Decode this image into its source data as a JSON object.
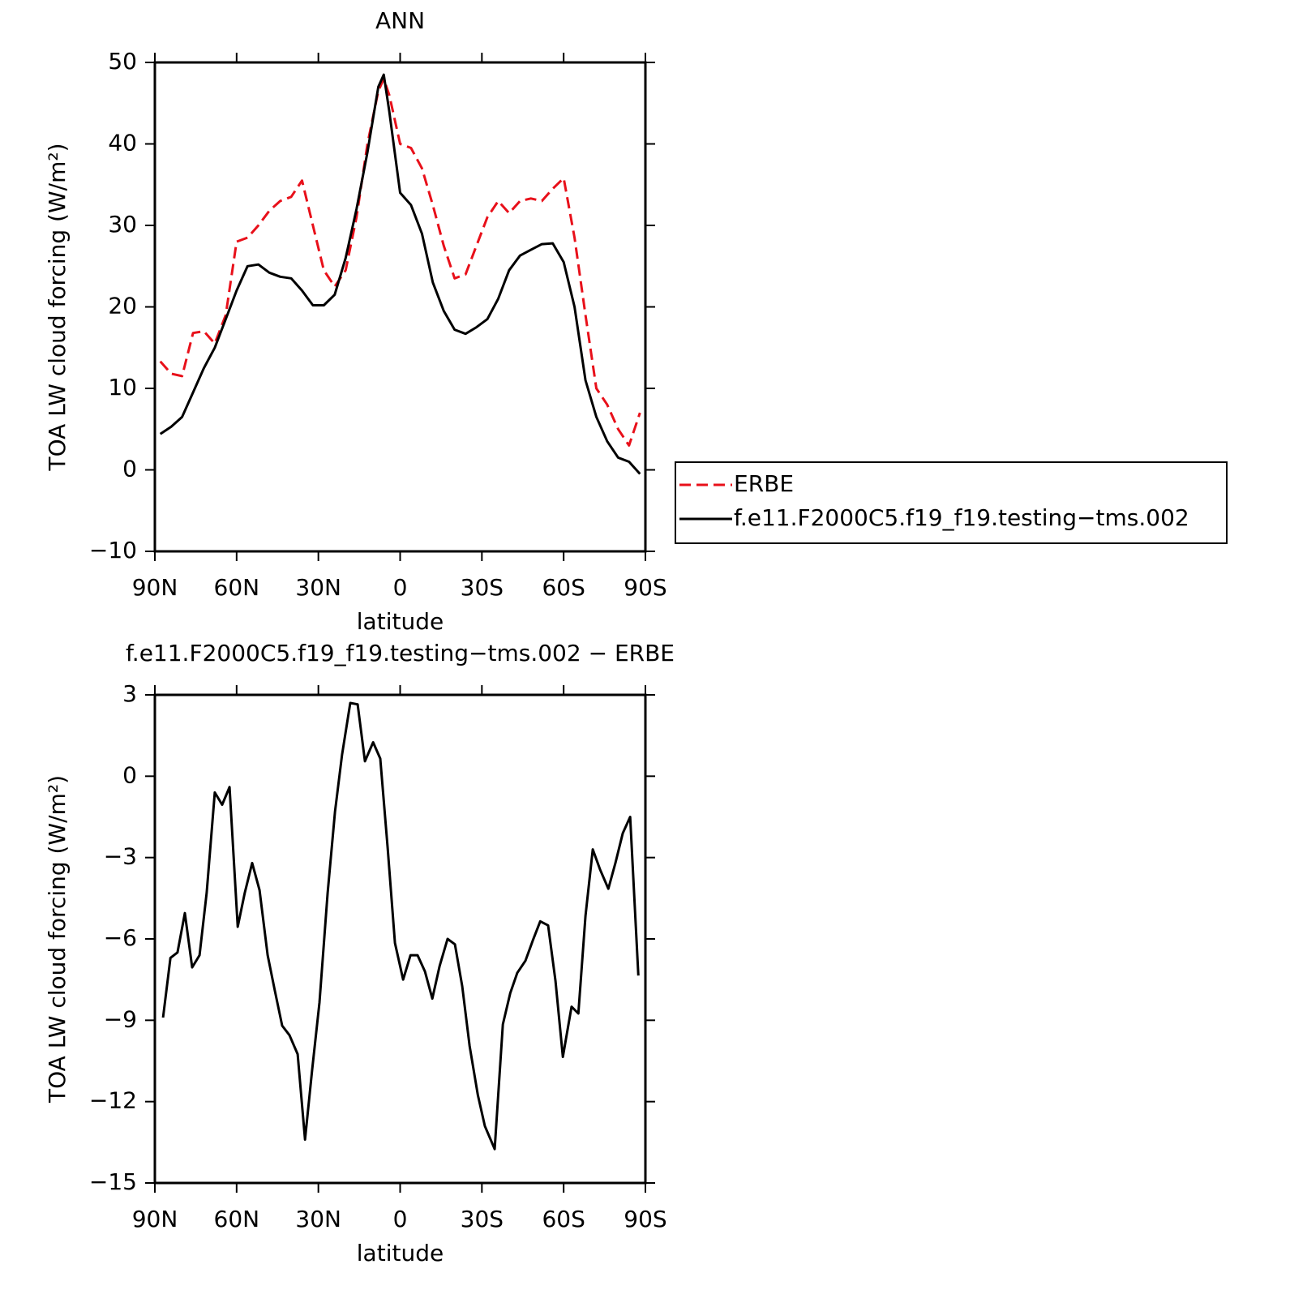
{
  "chart_data": [
    {
      "type": "line",
      "title": "ANN",
      "xlabel": "latitude",
      "ylabel": "TOA LW cloud forcing (W/m²)",
      "xlim": [
        90,
        -90
      ],
      "ylim": [
        -10,
        50
      ],
      "xticks": [
        {
          "value": 90,
          "label": "90N"
        },
        {
          "value": 60,
          "label": "60N"
        },
        {
          "value": 30,
          "label": "30N"
        },
        0,
        {
          "value": -30,
          "label": "30S"
        },
        {
          "value": -60,
          "label": "60S"
        },
        {
          "value": -90,
          "label": "90S"
        }
      ],
      "yticks": [
        {
          "value": -10,
          "label": "−10"
        },
        0,
        10,
        20,
        30,
        40,
        50
      ],
      "legend": "right",
      "x": [
        88,
        84,
        80,
        76,
        72,
        68,
        64,
        60,
        56,
        52,
        48,
        44,
        40,
        36,
        32,
        28,
        24,
        20,
        16,
        12,
        8,
        6,
        4,
        0,
        -4,
        -8,
        -12,
        -16,
        -20,
        -24,
        -28,
        -32,
        -36,
        -40,
        -44,
        -48,
        -52,
        -56,
        -60,
        -64,
        -68,
        -72,
        -76,
        -80,
        -84,
        -88
      ],
      "series": [
        {
          "name": "ERBE",
          "color": "#e8101a",
          "style": "dashed",
          "values": [
            13.3,
            11.8,
            11.5,
            16.8,
            17,
            15.5,
            19,
            28,
            28.5,
            30,
            31.8,
            33,
            33.5,
            35.5,
            30,
            24.5,
            22.5,
            24.5,
            31,
            40,
            46.5,
            48,
            46,
            40,
            39.5,
            37,
            32.5,
            27.5,
            23.5,
            24,
            27.5,
            31,
            33,
            31.5,
            33,
            33.3,
            33,
            34.5,
            35.8,
            28.5,
            19,
            10,
            8,
            5,
            3,
            7
          ]
        },
        {
          "name": "f.e11.F2000C5.f19_f19.testing−tms.002",
          "color": "#000000",
          "style": "solid",
          "values": [
            4.4,
            5.3,
            6.5,
            9.5,
            12.5,
            15,
            18.5,
            22,
            25,
            25.2,
            24.2,
            23.7,
            23.5,
            22,
            20.2,
            20.2,
            21.5,
            26,
            32,
            39,
            47,
            48.5,
            44,
            34,
            32.5,
            29,
            23,
            19.5,
            17.2,
            16.7,
            17.5,
            18.5,
            21,
            24.5,
            26.3,
            27,
            27.7,
            27.8,
            25.5,
            20,
            11,
            6.5,
            3.5,
            1.5,
            1,
            -0.5
          ]
        }
      ]
    },
    {
      "type": "line",
      "title": "f.e11.F2000C5.f19_f19.testing−tms.002 − ERBE",
      "xlabel": "latitude",
      "ylabel": "TOA LW cloud forcing (W/m²)",
      "xlim": [
        90,
        -90
      ],
      "ylim": [
        -15,
        3
      ],
      "xticks": [
        {
          "value": 90,
          "label": "90N"
        },
        {
          "value": 60,
          "label": "60N"
        },
        {
          "value": 30,
          "label": "30N"
        },
        0,
        {
          "value": -30,
          "label": "30S"
        },
        {
          "value": -60,
          "label": "60S"
        },
        {
          "value": -90,
          "label": "90S"
        }
      ],
      "yticks": [
        {
          "value": -15,
          "label": "−15"
        },
        {
          "value": -12,
          "label": "−12"
        },
        {
          "value": -9,
          "label": "−9"
        },
        {
          "value": -6,
          "label": "−6"
        },
        {
          "value": -3,
          "label": "−3"
        },
        0,
        3
      ],
      "color": "#000000",
      "x": [
        87.0,
        84.3,
        81.7,
        79.0,
        76.3,
        73.6,
        71.0,
        68.0,
        65.3,
        62.6,
        59.6,
        57.0,
        54.3,
        51.6,
        48.6,
        46.0,
        43.3,
        40.6,
        37.6,
        34.9,
        32.3,
        29.6,
        26.6,
        23.9,
        21.3,
        18.3,
        15.6,
        12.9,
        9.9,
        7.3,
        4.6,
        1.9,
        -1.1,
        -3.8,
        -6.4,
        -9.1,
        -11.8,
        -14.5,
        -17.4,
        -20.1,
        -22.8,
        -25.5,
        -28.5,
        -31.1,
        -34.7,
        -37.7,
        -40.4,
        -43.0,
        -46.0,
        -48.7,
        -51.4,
        -54.3,
        -57.0,
        -59.7,
        -62.9,
        -65.4,
        -68.0,
        -70.7,
        -73.4,
        -76.4,
        -79.0,
        -81.7,
        -84.4,
        -87.4
      ],
      "values": [
        -8.9,
        -6.7,
        -6.5,
        -5.05,
        -7.05,
        -6.6,
        -4.3,
        -0.6,
        -1.05,
        -0.4,
        -5.55,
        -4.3,
        -3.2,
        -4.2,
        -6.6,
        -7.9,
        -9.2,
        -9.55,
        -10.25,
        -13.4,
        -10.85,
        -8.35,
        -4.3,
        -1.3,
        0.8,
        2.7,
        2.65,
        0.55,
        1.25,
        0.65,
        -2.6,
        -6.15,
        -7.5,
        -6.6,
        -6.6,
        -7.2,
        -8.2,
        -7,
        -6,
        -6.2,
        -7.75,
        -9.95,
        -11.75,
        -12.9,
        -13.75,
        -9.15,
        -8,
        -7.25,
        -6.8,
        -6.05,
        -5.35,
        -5.5,
        -7.55,
        -10.35,
        -8.5,
        -8.75,
        -5.15,
        -2.7,
        -3.45,
        -4.15,
        -3.2,
        -2.1,
        -1.5,
        -7.35
      ]
    }
  ]
}
